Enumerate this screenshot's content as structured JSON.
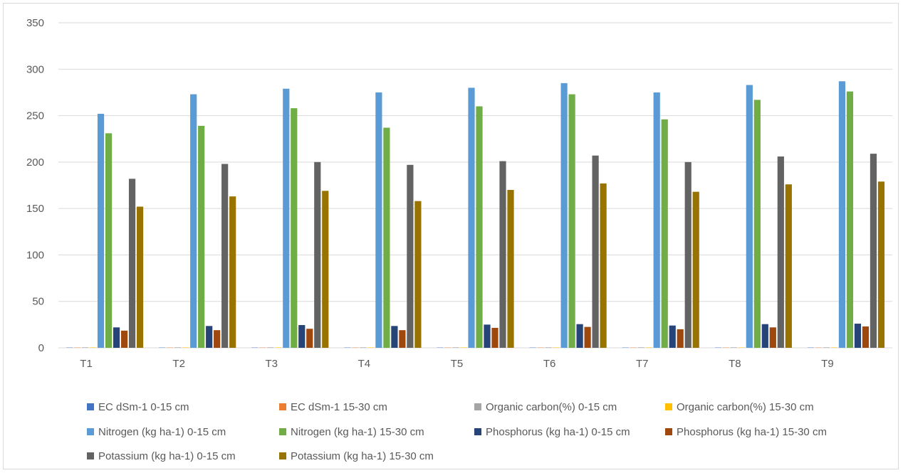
{
  "chart_data": {
    "type": "bar",
    "title": "",
    "xlabel": "",
    "ylabel": "",
    "ylim": [
      0,
      350
    ],
    "yticks": [
      0,
      50,
      100,
      150,
      200,
      250,
      300,
      350
    ],
    "grid": true,
    "legend_position": "bottom",
    "categories": [
      "T1",
      "T2",
      "T3",
      "T4",
      "T5",
      "T6",
      "T7",
      "T8",
      "T9"
    ],
    "series": [
      {
        "name": "EC dSm-1 0-15 cm",
        "color": "#4472C4",
        "values": [
          0.3,
          0.3,
          0.3,
          0.3,
          0.3,
          0.3,
          0.3,
          0.3,
          0.3
        ]
      },
      {
        "name": "EC dSm-1 15-30 cm",
        "color": "#ED7D31",
        "values": [
          0.3,
          0.3,
          0.3,
          0.3,
          0.3,
          0.3,
          0.3,
          0.3,
          0.3
        ]
      },
      {
        "name": "Organic carbon(%) 0-15 cm",
        "color": "#A5A5A5",
        "values": [
          0.5,
          0.5,
          0.5,
          0.5,
          0.5,
          0.5,
          0.5,
          0.5,
          0.5
        ]
      },
      {
        "name": "Organic carbon(%) 15-30 cm",
        "color": "#FFC000",
        "values": [
          0.4,
          0.4,
          0.4,
          0.4,
          0.4,
          0.4,
          0.4,
          0.4,
          0.4
        ]
      },
      {
        "name": "Nitrogen  (kg ha-1) 0-15 cm",
        "color": "#5B9BD5",
        "values": [
          252,
          273,
          279,
          275,
          280,
          285,
          275,
          283,
          287
        ]
      },
      {
        "name": "Nitrogen  (kg ha-1) 15-30 cm",
        "color": "#70AD47",
        "values": [
          231,
          239,
          258,
          237,
          260,
          273,
          246,
          267,
          276
        ]
      },
      {
        "name": "Phosphorus  (kg ha-1) 0-15 cm",
        "color": "#264478",
        "values": [
          22,
          23.5,
          24.5,
          23.5,
          25,
          25.5,
          24,
          25.5,
          26
        ]
      },
      {
        "name": "Phosphorus  (kg ha-1) 15-30 cm",
        "color": "#9E480E",
        "values": [
          18.5,
          19,
          20.5,
          19,
          21.5,
          22.5,
          20,
          22,
          23
        ]
      },
      {
        "name": "Potassium  (kg ha-1) 0-15 cm",
        "color": "#636363",
        "values": [
          182,
          198,
          200,
          197,
          201,
          207,
          200,
          206,
          209
        ]
      },
      {
        "name": "Potassium  (kg ha-1) 15-30 cm",
        "color": "#997300",
        "values": [
          152,
          163,
          169,
          158,
          170,
          177,
          168,
          176,
          179
        ]
      }
    ]
  }
}
